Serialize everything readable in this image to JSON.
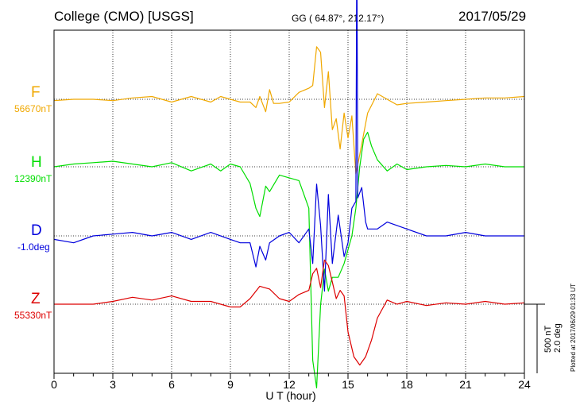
{
  "header": {
    "station": "College (CMO)  [USGS]",
    "coords": "GG ( 64.87°, 212.17°)",
    "date": "2017/05/29"
  },
  "colors": {
    "F": "#f0a800",
    "H": "#00dd00",
    "D": "#0000dd",
    "Z": "#dd0000"
  },
  "chart_data": {
    "type": "line",
    "xlabel": "U T (hour)",
    "xlim": [
      0,
      24
    ],
    "xticks": [
      "0",
      "3",
      "6",
      "9",
      "12",
      "15",
      "18",
      "21",
      "24"
    ],
    "scale_bar": {
      "nt_label": "500 nT",
      "deg_label": "2.0 deg",
      "value_nt": 500
    },
    "plotted_note": "Plotted at 2017/06/29 01:33 UT",
    "series": [
      {
        "name": "F",
        "baseline_label": "56670nT",
        "color": "#f0a800",
        "x": [
          0,
          1,
          2,
          3,
          4,
          5,
          6,
          7,
          8,
          8.5,
          9,
          9.5,
          10,
          10.3,
          10.5,
          10.8,
          11,
          11.2,
          11.5,
          12,
          12.5,
          13,
          13.2,
          13.4,
          13.6,
          13.8,
          14,
          14.2,
          14.4,
          14.6,
          14.8,
          15,
          15.2,
          15.4,
          15.6,
          16,
          16.5,
          17,
          17.5,
          18,
          19,
          20,
          21,
          22,
          23,
          24
        ],
        "values": [
          -10,
          0,
          0,
          -10,
          10,
          20,
          -20,
          20,
          -20,
          20,
          0,
          -20,
          -20,
          -60,
          20,
          -90,
          70,
          -30,
          -30,
          -20,
          50,
          80,
          100,
          380,
          340,
          -60,
          200,
          -220,
          -140,
          -360,
          -100,
          -280,
          -120,
          -540,
          -400,
          -100,
          40,
          0,
          -40,
          -30,
          -20,
          -10,
          0,
          10,
          10,
          20
        ]
      },
      {
        "name": "H",
        "baseline_label": "12390nT",
        "color": "#00dd00",
        "x": [
          0,
          1,
          2,
          3,
          4,
          5,
          6,
          7,
          8,
          8.5,
          9,
          9.5,
          10,
          10.3,
          10.5,
          10.8,
          11,
          11.5,
          12,
          12.5,
          13,
          13.2,
          13.4,
          13.6,
          13.8,
          14,
          14.2,
          14.5,
          14.8,
          15,
          15.2,
          15.4,
          15.6,
          15.8,
          16,
          16.2,
          16.5,
          17,
          17.5,
          18,
          19,
          20,
          21,
          22,
          23,
          24
        ],
        "values": [
          0,
          20,
          30,
          40,
          20,
          0,
          30,
          -30,
          20,
          -30,
          20,
          0,
          -120,
          -300,
          -360,
          -140,
          -180,
          -60,
          -80,
          -100,
          -300,
          -1400,
          -1600,
          -1000,
          -740,
          -900,
          -800,
          -800,
          -700,
          -600,
          -500,
          -300,
          0,
          200,
          250,
          150,
          50,
          -30,
          20,
          -20,
          0,
          10,
          0,
          20,
          0,
          0
        ]
      },
      {
        "name": "D",
        "baseline_label": "-1.0deg",
        "color": "#0000dd",
        "x": [
          0,
          1,
          2,
          3,
          4,
          5,
          6,
          7,
          8,
          9,
          9.5,
          10,
          10.3,
          10.5,
          10.8,
          11,
          11.5,
          12,
          12.5,
          13,
          13.2,
          13.4,
          13.6,
          13.8,
          14,
          14.2,
          14.5,
          14.8,
          15,
          15.2,
          15.4,
          15.45,
          15.5,
          15.7,
          15.9,
          16,
          16.5,
          17,
          17.5,
          18,
          19,
          20,
          21,
          22,
          23,
          24
        ],
        "values": [
          -0.1,
          -0.2,
          0,
          0.05,
          0.1,
          0,
          0.1,
          -0.1,
          0.1,
          -0.1,
          -0.2,
          -0.2,
          -0.9,
          -0.3,
          -0.7,
          -0.2,
          0,
          0.1,
          -0.2,
          0.2,
          -0.8,
          1.5,
          0.3,
          -1.6,
          1.2,
          -0.8,
          0.6,
          -0.6,
          -0.2,
          0.8,
          1.0,
          8.6,
          1.1,
          1.4,
          0.4,
          0.2,
          0.2,
          0.4,
          0.3,
          0.2,
          0,
          0,
          0.1,
          0,
          0,
          0
        ]
      },
      {
        "name": "Z",
        "baseline_label": "55330nT",
        "color": "#dd0000",
        "x": [
          0,
          1,
          2,
          3,
          4,
          5,
          6,
          7,
          8,
          9,
          9.5,
          10,
          10.5,
          11,
          11.5,
          12,
          12.5,
          13,
          13.2,
          13.4,
          13.6,
          13.8,
          14,
          14.2,
          14.4,
          14.6,
          14.8,
          15,
          15.3,
          15.6,
          15.9,
          16.2,
          16.5,
          17,
          17.5,
          18,
          19,
          20,
          21,
          22,
          23,
          24
        ],
        "values": [
          0,
          0,
          0,
          20,
          50,
          30,
          60,
          20,
          20,
          -20,
          -20,
          40,
          130,
          110,
          40,
          20,
          70,
          100,
          220,
          260,
          120,
          320,
          280,
          160,
          40,
          100,
          60,
          -200,
          -380,
          -440,
          -380,
          -260,
          -100,
          30,
          0,
          20,
          -10,
          10,
          0,
          20,
          0,
          10
        ]
      }
    ]
  }
}
